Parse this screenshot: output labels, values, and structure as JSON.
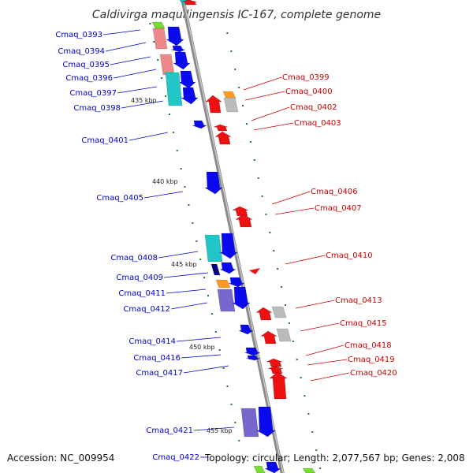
{
  "title": "Caldivirga maquilingensis IC-167, complete genome",
  "colors": {
    "forward_label": "#0000cc",
    "reverse_label": "#cc0000",
    "forward_gene": "#0a0aee",
    "reverse_gene": "#ee1111",
    "backbone": "#8a8a8a",
    "tick": "#1e7a1e",
    "feature_cyan": "#22c6c6",
    "feature_pink": "#ee8888",
    "feature_purple": "#7766cc",
    "feature_orange": "#ff9922",
    "feature_grey": "#bbbbbb",
    "feature_navy": "#000088",
    "feature_green": "#77dd33"
  },
  "scale_labels": [
    "435 kbp",
    "440 kbp",
    "445 kbp",
    "450 kbp",
    "455 kbp"
  ],
  "forward_labels": [
    "Cmaq_0393",
    "Cmaq_0394",
    "Cmaq_0395",
    "Cmaq_0396",
    "Cmaq_0397",
    "Cmaq_0398",
    "Cmaq_0401",
    "Cmaq_0405",
    "Cmaq_0408",
    "Cmaq_0409",
    "Cmaq_0411",
    "Cmaq_0412",
    "Cmaq_0414",
    "Cmaq_0416",
    "Cmaq_0417",
    "Cmaq_0421",
    "Cmaq_0422"
  ],
  "reverse_labels": [
    "Cmaq_0399",
    "Cmaq_0400",
    "Cmaq_0402",
    "Cmaq_0403",
    "Cmaq_0406",
    "Cmaq_0407",
    "Cmaq_0410",
    "Cmaq_0413",
    "Cmaq_0415",
    "Cmaq_0418",
    "Cmaq_0419",
    "Cmaq_0420"
  ],
  "footer": {
    "accession": "Accession: NC_009954",
    "topology": "Topology: circular; Length: 2,077,567 bp; Genes: 2,008"
  }
}
